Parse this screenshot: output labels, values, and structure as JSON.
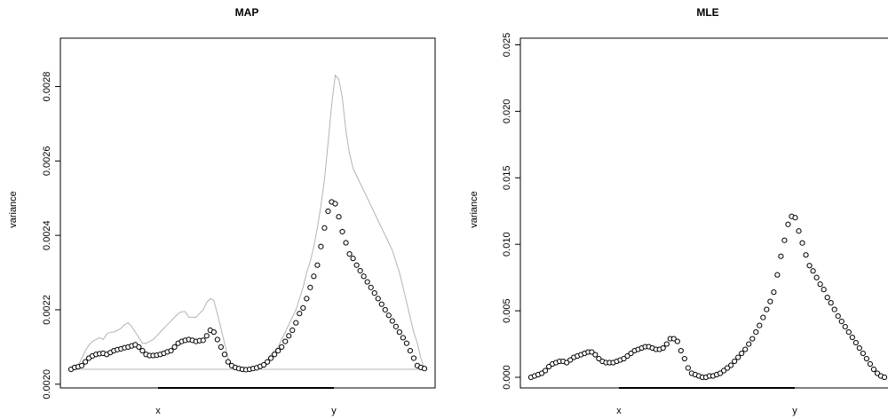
{
  "chart_data": [
    {
      "type": "scatter",
      "title": "MAP",
      "xlabel": "",
      "ylabel": "variance",
      "categories": [
        "x",
        "y"
      ],
      "ylim": [
        0.00199,
        0.00293
      ],
      "yticks": [
        0.002,
        0.0022,
        0.0024,
        0.0026,
        0.0028
      ],
      "ytick_labels": [
        "0.0020",
        "0.0022",
        "0.0024",
        "0.0026",
        "0.0028"
      ],
      "n_points": 100,
      "baseline": 0.00204,
      "series": [
        {
          "style": "points",
          "values": [
            0.00204,
            0.002045,
            0.002047,
            0.00205,
            0.00206,
            0.00207,
            0.002076,
            0.00208,
            0.002082,
            0.002083,
            0.00208,
            0.002085,
            0.00209,
            0.002093,
            0.002095,
            0.002098,
            0.0021,
            0.002103,
            0.002106,
            0.0021,
            0.00209,
            0.00208,
            0.002077,
            0.002077,
            0.002078,
            0.00208,
            0.002083,
            0.002087,
            0.00209,
            0.0021,
            0.00211,
            0.002115,
            0.002118,
            0.00212,
            0.002118,
            0.002115,
            0.002117,
            0.002118,
            0.00213,
            0.002145,
            0.00214,
            0.00212,
            0.0021,
            0.00208,
            0.00206,
            0.00205,
            0.002045,
            0.002042,
            0.00204,
            0.002039,
            0.00204,
            0.002042,
            0.002044,
            0.002048,
            0.002052,
            0.00206,
            0.00207,
            0.00208,
            0.00209,
            0.0021,
            0.002115,
            0.00213,
            0.002145,
            0.002165,
            0.00219,
            0.002205,
            0.00223,
            0.00226,
            0.00229,
            0.00232,
            0.00237,
            0.00242,
            0.002465,
            0.00249,
            0.002485,
            0.00245,
            0.00241,
            0.00238,
            0.00235,
            0.002338,
            0.00232,
            0.002305,
            0.00229,
            0.002275,
            0.00226,
            0.002245,
            0.00223,
            0.002215,
            0.0022,
            0.002185,
            0.00217,
            0.002155,
            0.00214,
            0.002125,
            0.00211,
            0.00209,
            0.00207,
            0.00205,
            0.002045,
            0.002042
          ]
        },
        {
          "style": "line",
          "color": "#b3b3b3",
          "values": [
            0.00204,
            0.002045,
            0.00205,
            0.00207,
            0.00209,
            0.002105,
            0.002115,
            0.00212,
            0.002125,
            0.00212,
            0.002135,
            0.00214,
            0.00214,
            0.002145,
            0.00215,
            0.00216,
            0.002165,
            0.002155,
            0.00214,
            0.002125,
            0.00211,
            0.00211,
            0.002115,
            0.00212,
            0.00213,
            0.00214,
            0.00215,
            0.00216,
            0.00217,
            0.00218,
            0.00219,
            0.002195,
            0.002195,
            0.00218,
            0.00218,
            0.00218,
            0.00219,
            0.0022,
            0.00222,
            0.00223,
            0.002225,
            0.00219,
            0.00215,
            0.00211,
            0.00207,
            0.00205,
            0.002045,
            0.002042,
            0.00204,
            0.00204,
            0.00204,
            0.002042,
            0.002045,
            0.00205,
            0.002055,
            0.002065,
            0.00208,
            0.00209,
            0.0021,
            0.00212,
            0.00214,
            0.00216,
            0.00218,
            0.0022,
            0.00223,
            0.00226,
            0.0023,
            0.00233,
            0.00237,
            0.00242,
            0.00248,
            0.00255,
            0.00265,
            0.00275,
            0.00283,
            0.00282,
            0.00277,
            0.00268,
            0.00262,
            0.00258,
            0.00256,
            0.00254,
            0.00252,
            0.0025,
            0.00248,
            0.00246,
            0.00244,
            0.00242,
            0.0024,
            0.00238,
            0.00236,
            0.00233,
            0.0023,
            0.00226,
            0.00222,
            0.00218,
            0.00214,
            0.00211,
            0.00207,
            0.00204
          ]
        },
        {
          "style": "hline",
          "color": "#b3b3b3",
          "value": 0.00204
        }
      ]
    },
    {
      "type": "scatter",
      "title": "MLE",
      "xlabel": "",
      "ylabel": "variance",
      "categories": [
        "x",
        "y"
      ],
      "ylim": [
        -0.0008,
        0.0255
      ],
      "yticks": [
        0.0,
        0.005,
        0.01,
        0.015,
        0.02,
        0.025
      ],
      "ytick_labels": [
        "0.000",
        "0.005",
        "0.010",
        "0.015",
        "0.020",
        "0.025"
      ],
      "n_points": 100,
      "series": [
        {
          "style": "points",
          "values": [
            0.0,
            0.0001,
            0.0002,
            0.0003,
            0.0005,
            0.0008,
            0.001,
            0.0011,
            0.0012,
            0.0012,
            0.0011,
            0.0013,
            0.0015,
            0.0016,
            0.0017,
            0.0018,
            0.0019,
            0.0019,
            0.0017,
            0.0014,
            0.0012,
            0.0011,
            0.0011,
            0.0011,
            0.0012,
            0.0013,
            0.0014,
            0.0016,
            0.0018,
            0.002,
            0.0021,
            0.0022,
            0.0023,
            0.0023,
            0.0022,
            0.0021,
            0.0021,
            0.0022,
            0.0025,
            0.0029,
            0.0029,
            0.0027,
            0.002,
            0.0014,
            0.0007,
            0.0003,
            0.0002,
            0.0001,
            0.0,
            0.0,
            0.0001,
            0.0001,
            0.0002,
            0.0003,
            0.0005,
            0.0007,
            0.0009,
            0.0012,
            0.0015,
            0.0018,
            0.0021,
            0.0025,
            0.0029,
            0.0034,
            0.0039,
            0.0045,
            0.0051,
            0.0057,
            0.0064,
            0.0077,
            0.0091,
            0.0103,
            0.0115,
            0.0121,
            0.012,
            0.011,
            0.0101,
            0.0092,
            0.0084,
            0.008,
            0.0075,
            0.007,
            0.0066,
            0.006,
            0.0056,
            0.0051,
            0.0046,
            0.0042,
            0.0038,
            0.0034,
            0.003,
            0.0026,
            0.0022,
            0.0018,
            0.0014,
            0.001,
            0.0006,
            0.0003,
            0.0001,
            0.0
          ]
        }
      ]
    }
  ]
}
